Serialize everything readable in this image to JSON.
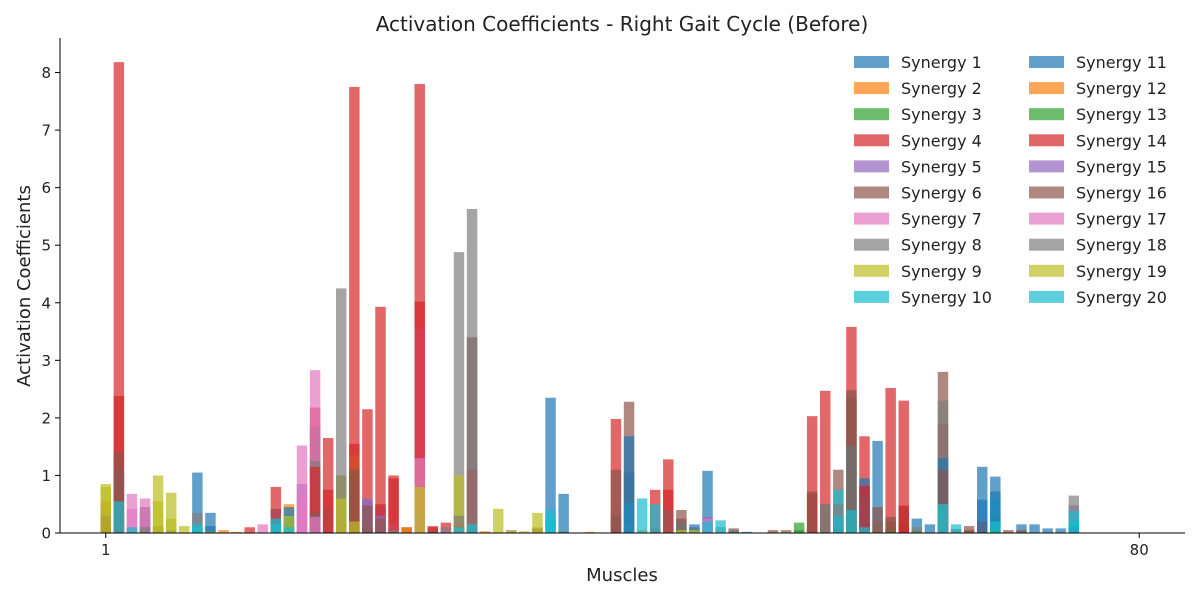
{
  "chart_data": {
    "type": "bar",
    "title": "Activation Coefficients - Right Gait Cycle (Before)",
    "xlabel": "Muscles",
    "ylabel": "Activation Coefficients",
    "xlim": [
      -3.5,
      82.5
    ],
    "ylim": [
      0,
      8.6
    ],
    "x_ticks": [
      {
        "value": 0,
        "label": "1"
      },
      {
        "value": 79,
        "label": "80"
      }
    ],
    "y_ticks": [
      0,
      1,
      2,
      3,
      4,
      5,
      6,
      7,
      8
    ],
    "bar_opacity": 0.7,
    "grid": false,
    "legend": {
      "position": "top-right",
      "columns": 2
    },
    "categories": [],
    "series": [
      {
        "name": "Synergy 1",
        "color": "#1f77b4",
        "values": {
          "7": 1.05,
          "8": 0.35,
          "13": 0.42,
          "34": 2.35,
          "40": 1.05,
          "46": 1.08,
          "57": 0.28,
          "58": 0.8,
          "59": 1.6,
          "67": 1.15,
          "68": 0.98,
          "70": 0.15,
          "72": 0.08,
          "74": 0.22
        }
      },
      {
        "name": "Synergy 2",
        "color": "#ff7f0e",
        "values": {
          "0": 0.2,
          "14": 0.5,
          "19": 0.1,
          "20": 0.08,
          "22": 0.05,
          "23": 0.08,
          "24": 0.05,
          "27": 0.12,
          "35": 0.02,
          "41": 0.05,
          "59": 0.05,
          "60": 0.08,
          "66": 0.05
        }
      },
      {
        "name": "Synergy 3",
        "color": "#2ca02c",
        "values": {
          "1": 0.35,
          "14": 0.12,
          "42": 0.08,
          "53": 0.18,
          "58": 0.2,
          "60": 0.2,
          "61": 0.18,
          "68": 0.3
        }
      },
      {
        "name": "Synergy 4",
        "color": "#d62728",
        "values": {
          "0": 0.55,
          "1": 8.18,
          "4": 0.1,
          "11": 0.1,
          "13": 0.8,
          "16": 2.18,
          "17": 1.65,
          "19": 7.75,
          "20": 2.15,
          "21": 3.93,
          "22": 1.0,
          "24": 7.8,
          "25": 0.12,
          "26": 0.18,
          "28": 3.4,
          "39": 1.98,
          "42": 0.75,
          "43": 1.28,
          "54": 2.03,
          "55": 2.47,
          "57": 3.58,
          "58": 1.68,
          "60": 2.52,
          "61": 2.3,
          "64": 1.9,
          "67": 0.2
        }
      },
      {
        "name": "Synergy 5",
        "color": "#9467bd",
        "values": {
          "3": 0.35,
          "15": 0.85,
          "18": 0.3,
          "20": 0.6,
          "21": 0.45,
          "31": 0.05,
          "46": 0.28,
          "74": 0.48
        }
      },
      {
        "name": "Synergy 6",
        "color": "#8c564b",
        "values": {
          "2": 0.1,
          "4": 0.12,
          "16": 1.85,
          "20": 0.12,
          "23": 0.1,
          "39": 1.1,
          "40": 2.28,
          "44": 0.4,
          "45": 0.1,
          "48": 0.08,
          "51": 0.05,
          "55": 0.5,
          "56": 1.1,
          "57": 2.48,
          "61": 0.45,
          "64": 2.8,
          "65": 0.07,
          "66": 0.12,
          "69": 0.05,
          "70": 0.05
        }
      },
      {
        "name": "Synergy 7",
        "color": "#e377c2",
        "values": {
          "1": 0.68,
          "2": 0.68,
          "3": 0.6,
          "12": 0.15,
          "15": 0.62,
          "16": 2.83,
          "21": 0.28,
          "22": 0.15,
          "24": 3.55,
          "26": 0.05,
          "46": 0.25
        }
      },
      {
        "name": "Synergy 8",
        "color": "#7f7f7f",
        "values": {
          "3": 0.45,
          "7": 0.35,
          "16": 1.25,
          "17": 0.45,
          "18": 4.25,
          "26": 0.1,
          "27": 4.88,
          "28": 5.63,
          "33": 0.05,
          "40": 0.12,
          "47": 0.1,
          "58": 0.25,
          "59": 0.2,
          "64": 2.3,
          "74": 0.65
        }
      },
      {
        "name": "Synergy 9",
        "color": "#bcbd22",
        "values": {
          "0": 0.85,
          "4": 1.0,
          "5": 0.7,
          "6": 0.12,
          "18": 1.0,
          "19": 1.35,
          "24": 1.25,
          "27": 1.0,
          "30": 0.42,
          "31": 0.05,
          "32": 0.03,
          "33": 0.35,
          "35": 0.03,
          "45": 0.08
        }
      },
      {
        "name": "Synergy 10",
        "color": "#17becf",
        "values": {
          "0": 0.05,
          "1": 1.08,
          "7": 0.15,
          "13": 0.15,
          "14": 0.32,
          "24": 0.3,
          "28": 0.18,
          "34": 0.4,
          "40": 0.52,
          "41": 0.6,
          "42": 0.5,
          "43": 0.4,
          "44": 0.18,
          "47": 0.22,
          "56": 0.75,
          "57": 1.52,
          "58": 0.62,
          "65": 0.15,
          "68": 0.58,
          "74": 0.38
        }
      },
      {
        "name": "Synergy 11",
        "color": "#1f77b4",
        "values": {
          "8": 0.12,
          "14": 0.45,
          "35": 0.68,
          "40": 1.68,
          "45": 0.15,
          "48": 0.03,
          "49": 0.02,
          "56": 0.1,
          "58": 0.95,
          "62": 0.25,
          "63": 0.15,
          "64": 1.3,
          "67": 0.58,
          "68": 0.72,
          "71": 0.15,
          "73": 0.08,
          "74": 0.1
        }
      },
      {
        "name": "Synergy 12",
        "color": "#ff7f0e",
        "values": {
          "0": 0.12,
          "3": 0.05,
          "9": 0.05,
          "10": 0.02,
          "18": 0.08,
          "23": 0.1,
          "27": 0.18,
          "29": 0.03,
          "37": 0.02
        }
      },
      {
        "name": "Synergy 13",
        "color": "#2ca02c",
        "values": {
          "53": 0.05,
          "54": 0.05,
          "60": 0.05,
          "62": 0.05,
          "68": 0.05
        }
      },
      {
        "name": "Synergy 14",
        "color": "#d62728",
        "values": {
          "1": 2.38,
          "16": 1.15,
          "17": 0.75,
          "19": 1.55,
          "21": 0.5,
          "22": 0.95,
          "24": 4.02,
          "25": 0.1,
          "28": 1.1,
          "43": 0.75,
          "54": 0.68,
          "58": 0.82,
          "61": 0.48
        }
      },
      {
        "name": "Synergy 15",
        "color": "#9467bd",
        "values": {
          "16": 0.32,
          "20": 0.55,
          "21": 0.3
        }
      },
      {
        "name": "Synergy 16",
        "color": "#8c564b",
        "values": {
          "0": 0.3,
          "1": 1.4,
          "3": 0.1,
          "16": 0.35,
          "19": 1.1,
          "20": 0.48,
          "21": 0.25,
          "25": 0.05,
          "33": 0.08,
          "39": 0.3,
          "44": 0.25,
          "52": 0.05,
          "54": 0.72,
          "56": 0.3,
          "57": 2.35,
          "59": 0.45,
          "60": 0.28,
          "64": 1.1,
          "66": 0.05
        }
      },
      {
        "name": "Synergy 17",
        "color": "#e377c2",
        "values": {
          "2": 0.42,
          "3": 0.45,
          "15": 1.52,
          "16": 0.28,
          "24": 1.3
        }
      },
      {
        "name": "Synergy 18",
        "color": "#7f7f7f",
        "values": {
          "3": 0.1,
          "5": 0.05,
          "18": 1.0,
          "22": 0.05,
          "27": 0.3,
          "28": 3.4,
          "48": 0.06,
          "55": 0.5,
          "56": 0.5,
          "62": 0.1,
          "64": 0.5
        }
      },
      {
        "name": "Synergy 19",
        "color": "#bcbd22",
        "values": {
          "0": 0.8,
          "4": 0.55,
          "5": 0.25,
          "8": 0.02,
          "14": 0.3,
          "18": 0.6,
          "19": 0.2,
          "24": 0.8,
          "33": 0.1,
          "44": 0.05,
          "45": 0.05,
          "52": 0.02
        }
      },
      {
        "name": "Synergy 20",
        "color": "#17becf",
        "values": {
          "1": 0.55,
          "2": 0.1,
          "7": 0.1,
          "13": 0.25,
          "14": 0.1,
          "27": 0.1,
          "28": 0.15,
          "34": 0.25,
          "46": 0.2,
          "56": 0.3,
          "57": 0.4,
          "58": 0.1,
          "64": 0.5,
          "68": 0.2,
          "74": 0.2
        }
      }
    ]
  }
}
